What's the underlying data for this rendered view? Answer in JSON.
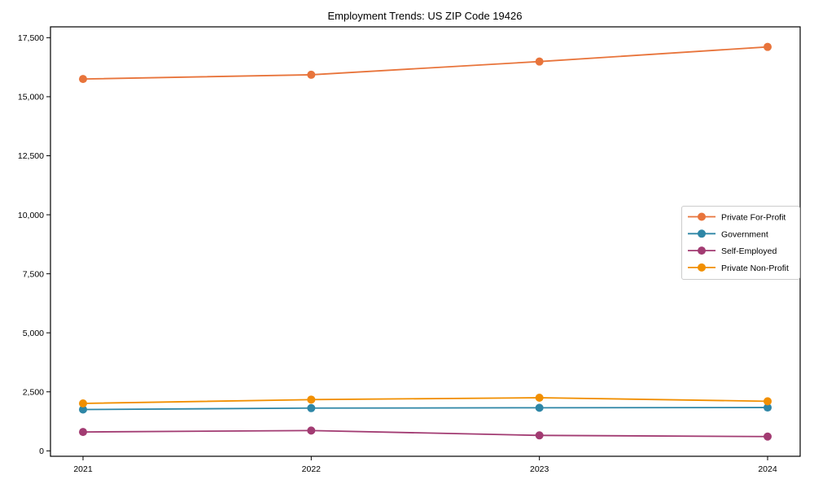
{
  "chart_data": {
    "type": "line",
    "title": "Employment Trends: US ZIP Code 19426",
    "xlabel": "",
    "ylabel": "",
    "categories": [
      "2021",
      "2022",
      "2023",
      "2024"
    ],
    "series": [
      {
        "name": "Private For-Profit",
        "color": "#E8743B",
        "values": [
          15750,
          15930,
          16490,
          17110
        ]
      },
      {
        "name": "Government",
        "color": "#2E86A6",
        "values": [
          1750,
          1810,
          1825,
          1835
        ]
      },
      {
        "name": "Self-Employed",
        "color": "#A23B72",
        "values": [
          800,
          860,
          655,
          605
        ]
      },
      {
        "name": "Private Non-Profit",
        "color": "#F18F01",
        "values": [
          2010,
          2170,
          2250,
          2100
        ]
      }
    ],
    "ylim": [
      -230,
      17960
    ],
    "yticks": [
      0,
      2500,
      5000,
      7500,
      10000,
      12500,
      15000,
      17500
    ],
    "ytick_labels": [
      "0",
      "2,500",
      "5,000",
      "7,500",
      "10,000",
      "12,500",
      "15,000",
      "17,500"
    ],
    "grid": false,
    "legend_position": "center-right",
    "marker": "circle",
    "background_color": "#ffffff",
    "spine_color": "#000000",
    "text_color": "#000000",
    "legend_border_color": "#cccccc"
  }
}
